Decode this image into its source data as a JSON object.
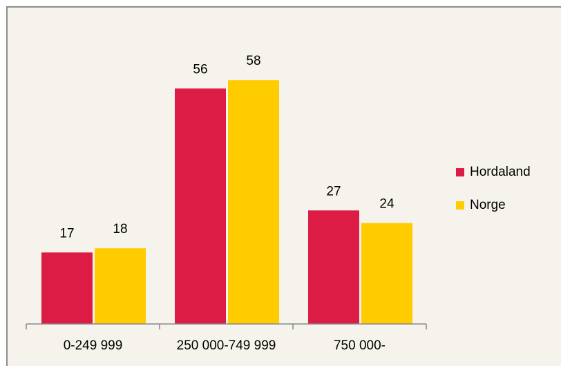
{
  "chart_data": {
    "type": "bar",
    "categories": [
      "0-249 999",
      "250 000-749 999",
      "750 000-"
    ],
    "series": [
      {
        "name": "Hordaland",
        "color": "#dc1c45",
        "values": [
          17,
          56,
          27
        ]
      },
      {
        "name": "Norge",
        "color": "#ffcc00",
        "values": [
          18,
          58,
          24
        ]
      }
    ],
    "legend": "right"
  }
}
